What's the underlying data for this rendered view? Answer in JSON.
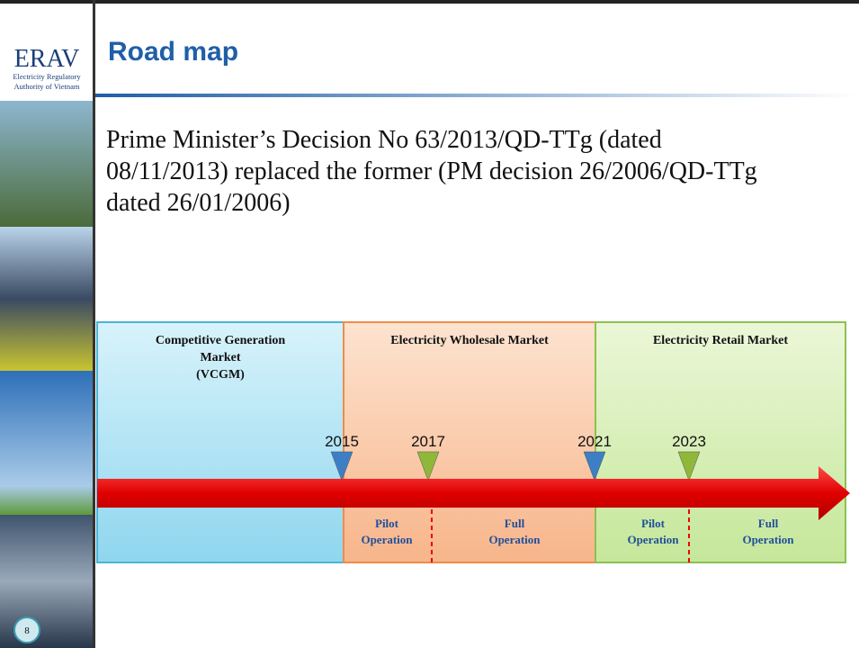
{
  "logo": {
    "name": "ERAV",
    "subtitle": [
      "Electricity Regulatory",
      "Authority of Vietnam"
    ]
  },
  "title": "Road map",
  "body": [
    "Prime Minister’s Decision No 63/2013/QD-TTg (dated",
    "08/11/2013) replaced  the former (PM decision 26/2006/QD-TTg",
    "dated 26/01/2006)"
  ],
  "timeline": {
    "phases": [
      [
        "Competitive Generation",
        "Market",
        "(VCGM)"
      ],
      [
        "Electricity Wholesale Market"
      ],
      [
        "Electricity Retail Market"
      ]
    ],
    "milestones": [
      "2015",
      "2017",
      "2021",
      "2023"
    ],
    "stages": [
      [
        "Pilot",
        "Operation"
      ],
      [
        "Full",
        "Operation"
      ],
      [
        "Pilot",
        "Operation"
      ],
      [
        "Full",
        "Operation"
      ]
    ]
  },
  "slide_number": "8"
}
